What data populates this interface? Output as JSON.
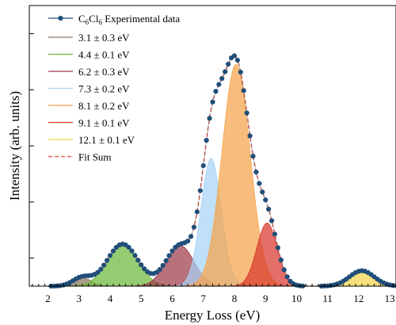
{
  "chart_data": {
    "type": "area",
    "title": "",
    "xlabel": "Energy Loss (eV)",
    "ylabel": "Intensity (arb. units)",
    "xlim": [
      1.4,
      13.2
    ],
    "ylim": [
      0,
      1.0
    ],
    "xticks": [
      2,
      3,
      4,
      5,
      6,
      7,
      8,
      9,
      10,
      11,
      12,
      13
    ],
    "xtick_labels": [
      "2",
      "3",
      "4",
      "5",
      "6",
      "7",
      "8",
      "9",
      "10",
      "11",
      "12",
      "13"
    ],
    "y_tick_labels_shown": false,
    "grid": false,
    "legend_position": "top-left",
    "experimental": {
      "name_parts": [
        "C",
        "6",
        "Cl",
        "6",
        " Experimental data"
      ],
      "color": "#1f4e79",
      "x_start": 2.1,
      "x_end": 13.2,
      "x_step": 0.1,
      "gap": [
        10.2,
        10.8
      ]
    },
    "fit_components": [
      {
        "name": "3.1 ± 0.3 eV",
        "center": 3.1,
        "sigma": 0.3,
        "amplitude": 0.03,
        "color": "#8a7560"
      },
      {
        "name": "4.4 ± 0.1 eV",
        "center": 4.4,
        "sigma": 0.5,
        "amplitude": 0.15,
        "color": "#6db83a"
      },
      {
        "name": "6.2 ± 0.3 eV",
        "center": 6.25,
        "sigma": 0.45,
        "amplitude": 0.145,
        "color": "#9e3a4a"
      },
      {
        "name": "7.3 ± 0.2 eV",
        "center": 7.25,
        "sigma": 0.33,
        "amplitude": 0.455,
        "color": "#a8d3f5"
      },
      {
        "name": "8.1 ± 0.2 eV",
        "center": 8.05,
        "sigma": 0.45,
        "amplitude": 0.79,
        "color": "#f5a44a"
      },
      {
        "name": "9.1 ± 0.1 eV",
        "center": 9.05,
        "sigma": 0.33,
        "amplitude": 0.225,
        "color": "#d8382e"
      },
      {
        "name": "12.1 ± 0.1 eV",
        "center": 12.1,
        "sigma": 0.4,
        "amplitude": 0.055,
        "color": "#f3d34a"
      }
    ],
    "fit_sum": {
      "name": "Fit Sum",
      "color": "#e8664a",
      "dashed": true
    }
  }
}
